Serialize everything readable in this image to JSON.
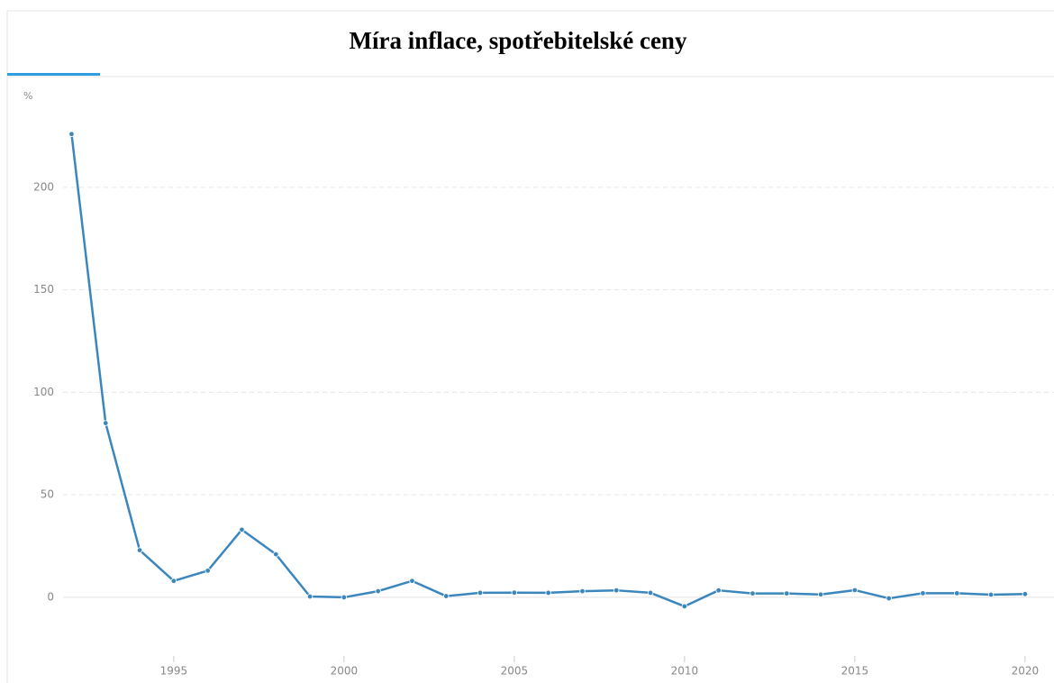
{
  "chart_data": {
    "type": "line",
    "title": "Míra inflace, spotřebitelské ceny",
    "y_label": "%",
    "x": [
      1992,
      1993,
      1994,
      1995,
      1996,
      1997,
      1998,
      1999,
      2000,
      2001,
      2002,
      2003,
      2004,
      2005,
      2006,
      2007,
      2008,
      2009,
      2010,
      2011,
      2012,
      2013,
      2014,
      2015,
      2016,
      2017,
      2018,
      2019,
      2020
    ],
    "series": [
      {
        "name": "Míra inflace",
        "color": "#3a86bd",
        "values": [
          226,
          85,
          23,
          8,
          13,
          33,
          21,
          0.4,
          0,
          3,
          8,
          0.6,
          2.2,
          2.3,
          2.2,
          3,
          3.4,
          2.2,
          -4.4,
          3.4,
          1.9,
          1.9,
          1.4,
          3.5,
          -0.5,
          2,
          2,
          1.3,
          1.6
        ]
      }
    ],
    "xlim": [
      1991.75,
      2020.85
    ],
    "xticks": [
      1995,
      2000,
      2005,
      2010,
      2015,
      2020
    ],
    "ylim": [
      -33,
      247
    ],
    "yticks": [
      0,
      50,
      100,
      150,
      200
    ],
    "grid": true
  }
}
